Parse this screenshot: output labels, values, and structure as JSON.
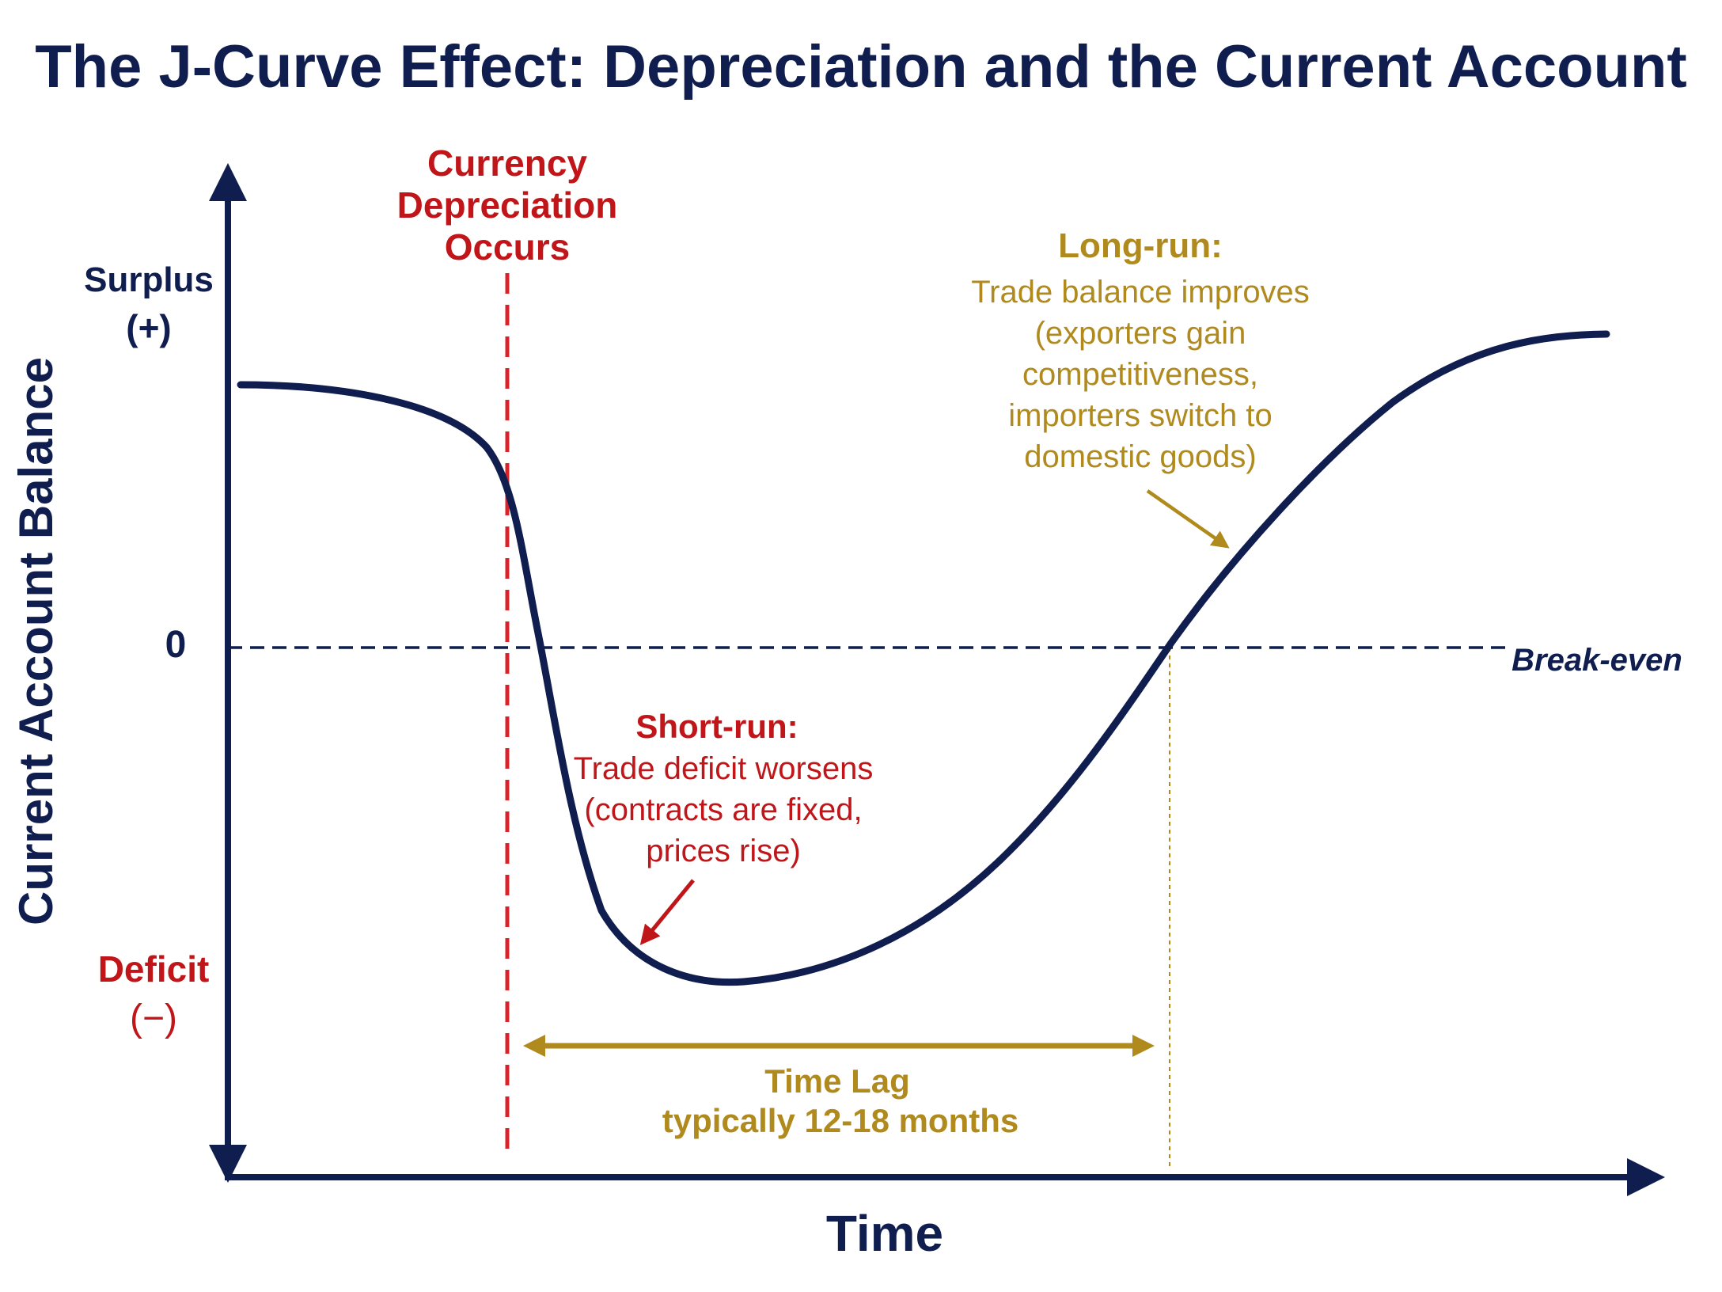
{
  "title": "The J-Curve Effect: Depreciation and the Current Account",
  "y_axis": {
    "label": "Current Account Balance",
    "surplus": "Surplus",
    "surplus_sign": "(+)",
    "zero": "0",
    "deficit": "Deficit",
    "deficit_sign": "(−)"
  },
  "x_axis": {
    "label": "Time"
  },
  "depreciation": {
    "lines": [
      "Currency",
      "Depreciation",
      "Occurs"
    ]
  },
  "break_even": "Break-even",
  "short_run": {
    "heading": "Short-run:",
    "lines": [
      "Trade deficit worsens",
      "(contracts are fixed,",
      "prices rise)"
    ]
  },
  "long_run": {
    "heading": "Long-run:",
    "lines": [
      "Trade balance improves",
      "(exporters gain",
      "competitiveness,",
      "importers switch to",
      "domestic goods)"
    ]
  },
  "time_lag": {
    "line1": "Time Lag",
    "line2": "typically 12-18 months"
  },
  "colors": {
    "navy": "#0f1d4f",
    "red": "#c0161a",
    "gold": "#b08a1c"
  }
}
